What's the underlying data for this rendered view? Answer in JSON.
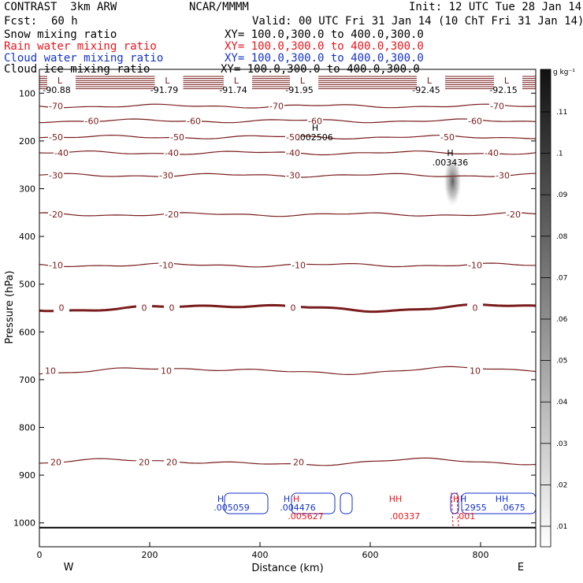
{
  "header": {
    "model": "CONTRAST  3km ARW",
    "center": "NCAR/MMMM",
    "init": "Init: 12 UTC Tue 28 Jan 14",
    "fcst_label": "Fcst:",
    "fcst_value": "60 h",
    "valid": "Valid: 00 UTC Fri 31 Jan 14 (10 ChT Fri 31 Jan 14)"
  },
  "fields": [
    {
      "name": "Snow mixing ratio",
      "xy": "XY= 100.0,300.0 to 400.0,300.0",
      "color": "#000000"
    },
    {
      "name": "Rain water mixing ratio",
      "xy": "XY= 100.0,300.0 to 400.0,300.0",
      "color": "#e8141c"
    },
    {
      "name": "Cloud water mixing ratio",
      "xy": "XY= 100.0,300.0 to 400.0,300.0",
      "color": "#1432c8"
    },
    {
      "name": "Cloud ice mixing ratio",
      "xy": "XY= 100.0,300.0 to 400.0,300.0",
      "color": "#000000"
    }
  ],
  "chart_data": {
    "type": "cross-section contour",
    "xlabel": "Distance (km)",
    "ylabel": "Pressure (hPa)",
    "xlim": [
      0,
      900
    ],
    "ylim": [
      1050,
      50
    ],
    "x_ticks": [
      "0",
      "200",
      "400",
      "600",
      "800"
    ],
    "y_ticks": [
      "100",
      "200",
      "300",
      "400",
      "500",
      "600",
      "700",
      "800",
      "900",
      "1000"
    ],
    "x_end_labels": {
      "left": "W",
      "right": "E"
    },
    "colorbar": {
      "unit": "g kg⁻¹",
      "levels": [
        ".01",
        ".02",
        ".03",
        ".04",
        ".05",
        ".06",
        ".07",
        ".08",
        ".09",
        ".1",
        ".11"
      ]
    },
    "temperature_contours": [
      {
        "label": "-70",
        "p": 127,
        "label_x": [
          30,
          430,
          830
        ]
      },
      {
        "label": "-60",
        "p": 158,
        "label_x": [
          95,
          280,
          500,
          790
        ]
      },
      {
        "label": "-50",
        "p": 192,
        "label_x": [
          30,
          250,
          460,
          740
        ]
      },
      {
        "label": "-40",
        "p": 225,
        "label_x": [
          40,
          240,
          460,
          820
        ]
      },
      {
        "label": "-30",
        "p": 272,
        "label_x": [
          30,
          230,
          460,
          840
        ]
      },
      {
        "label": "-20",
        "p": 354,
        "label_x": [
          30,
          240,
          860
        ]
      },
      {
        "label": "-10",
        "p": 460,
        "label_x": [
          30,
          230,
          470,
          790
        ]
      },
      {
        "label": "0",
        "p": 549,
        "label_x": [
          40,
          190,
          240,
          460,
          790
        ]
      },
      {
        "label": "10",
        "p": 681,
        "label_x": [
          20,
          230,
          790
        ]
      },
      {
        "label": "20",
        "p": 873,
        "label_x": [
          30,
          190,
          240,
          470
        ]
      }
    ],
    "temperature_color": "#7a1c1c",
    "zero_line_emphasis": true,
    "lows": [
      {
        "label": "L",
        "value": "-90.88",
        "x": 20
      },
      {
        "label": "L",
        "value": "-91.79",
        "x": 215
      },
      {
        "label": "L",
        "value": "-91.74",
        "x": 340
      },
      {
        "label": "L",
        "value": "-91.95",
        "x": 460
      },
      {
        "label": "L",
        "value": "-92.45",
        "x": 690
      },
      {
        "label": "L",
        "value": "-92.15",
        "x": 830
      }
    ],
    "snow_maxima": [
      {
        "label": "H",
        "value": ".002506",
        "x": 500,
        "p": 195
      },
      {
        "label": "H",
        "value": ".003436",
        "x": 745,
        "p": 248
      }
    ],
    "cloud_water_maxima": [
      {
        "label": "H",
        "value": ".005059",
        "x": 360
      },
      {
        "label": "H",
        "value": ".004476",
        "x": 480
      },
      {
        "label": "H",
        "value": ".2955",
        "x": 800
      },
      {
        "label": "HH",
        "value": ".0675",
        "x": 870
      }
    ],
    "rain_maxima": [
      {
        "label": "H",
        "value": ".005627",
        "x": 480
      },
      {
        "label": "HH",
        "value": ".00337",
        "x": 660
      },
      {
        "label": "H",
        "value": ".001",
        "x": 770
      }
    ],
    "surface_pressure": 1010
  }
}
